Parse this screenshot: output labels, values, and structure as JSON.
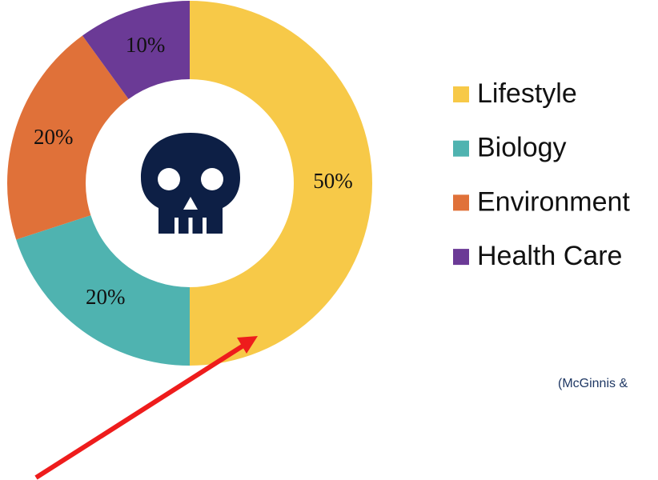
{
  "chart_data": {
    "type": "donut",
    "categories": [
      "Lifestyle",
      "Biology",
      "Environment",
      "Health Care"
    ],
    "values": [
      50,
      20,
      20,
      10
    ],
    "value_labels": [
      "50%",
      "20%",
      "20%",
      "10%"
    ],
    "colors": [
      "#f7c948",
      "#4fb3b0",
      "#e07139",
      "#6b3a96"
    ],
    "legend": "right",
    "annotation": "(McGinnis &"
  }
}
